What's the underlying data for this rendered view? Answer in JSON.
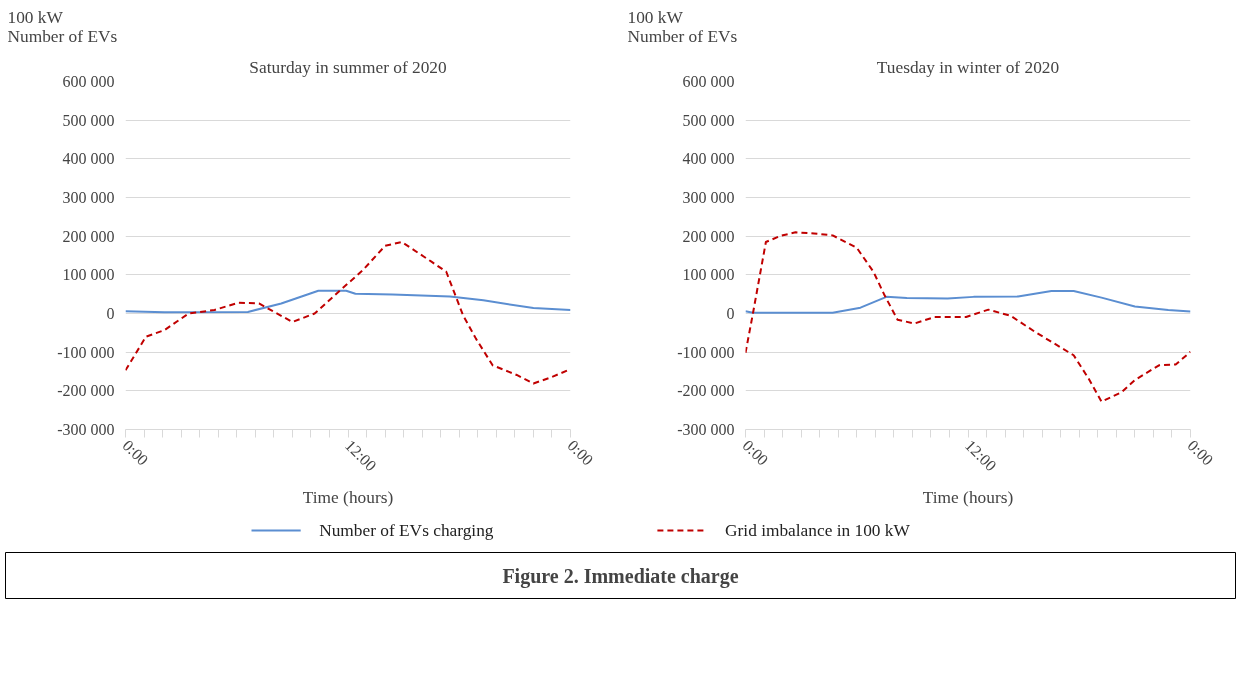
{
  "chart_data": [
    {
      "type": "line",
      "title": "Saturday in summer of 2020",
      "ylabel": "100 kW\nNumber of EVs",
      "xlabel": "Time (hours)",
      "xlim": [
        0,
        24
      ],
      "ylim": [
        -300000,
        600000
      ],
      "xticks": [
        {
          "value": 0,
          "label": "0:00"
        },
        {
          "value": 1,
          "label": null
        },
        {
          "value": 2,
          "label": null
        },
        {
          "value": 3,
          "label": null
        },
        {
          "value": 4,
          "label": null
        },
        {
          "value": 5,
          "label": null
        },
        {
          "value": 6,
          "label": null
        },
        {
          "value": 7,
          "label": null
        },
        {
          "value": 8,
          "label": null
        },
        {
          "value": 9,
          "label": null
        },
        {
          "value": 10,
          "label": null
        },
        {
          "value": 11,
          "label": null
        },
        {
          "value": 12,
          "label": "12:00"
        },
        {
          "value": 13,
          "label": null
        },
        {
          "value": 14,
          "label": null
        },
        {
          "value": 15,
          "label": null
        },
        {
          "value": 16,
          "label": null
        },
        {
          "value": 17,
          "label": null
        },
        {
          "value": 18,
          "label": null
        },
        {
          "value": 19,
          "label": null
        },
        {
          "value": 20,
          "label": null
        },
        {
          "value": 21,
          "label": null
        },
        {
          "value": 22,
          "label": null
        },
        {
          "value": 23,
          "label": null
        },
        {
          "value": 24,
          "label": "0:00"
        }
      ],
      "yticks": [
        {
          "value": -300000,
          "label": "-300 000"
        },
        {
          "value": -200000,
          "label": "-200 000"
        },
        {
          "value": -100000,
          "label": "-100 000"
        },
        0,
        {
          "value": 100000,
          "label": "100 000"
        },
        {
          "value": 200000,
          "label": "200 000"
        },
        {
          "value": 300000,
          "label": "300 000"
        },
        {
          "value": 400000,
          "label": "400 000"
        },
        {
          "value": 500000,
          "label": "500 000"
        },
        {
          "value": 600000,
          "label": "600 000"
        }
      ],
      "grid": "y",
      "legend": "bottom",
      "annotations": [
        "Figure 2. Immediate charge"
      ],
      "series": [
        {
          "name": "Number of EVs charging",
          "color": "#5b8ed1",
          "line_style": "solid",
          "x": [
            0,
            2.1,
            6.6,
            8.4,
            10.4,
            11.9,
            12.4,
            14.4,
            17.5,
            19.3,
            22,
            24
          ],
          "values": [
            6000,
            3000,
            4000,
            26000,
            59000,
            59000,
            51000,
            49000,
            44000,
            34000,
            14000,
            9000
          ]
        },
        {
          "name": "Grid imbalance in 100 kW",
          "color": "#c00000",
          "line_style": "dashed",
          "x": [
            0,
            1.1,
            2.1,
            3.4,
            4.8,
            6.1,
            7.2,
            9,
            10.2,
            11.7,
            12.8,
            14,
            14.9,
            16.5,
            17.3,
            18.2,
            18.9,
            19.8,
            21.1,
            22,
            22.9,
            24
          ],
          "values": [
            -147000,
            -60000,
            -43000,
            0,
            9000,
            28000,
            26000,
            -22000,
            0,
            65000,
            112000,
            175000,
            185000,
            134000,
            108000,
            -4000,
            -65000,
            -134000,
            -159000,
            -181000,
            -166000,
            -144000
          ]
        }
      ]
    },
    {
      "type": "line",
      "title": "Tuesday in winter of 2020",
      "ylabel": "100 kW\nNumber of EVs",
      "xlabel": "Time (hours)",
      "xlim": [
        0,
        24
      ],
      "ylim": [
        -300000,
        600000
      ],
      "xticks": [
        {
          "value": 0,
          "label": "0:00"
        },
        {
          "value": 1,
          "label": null
        },
        {
          "value": 2,
          "label": null
        },
        {
          "value": 3,
          "label": null
        },
        {
          "value": 4,
          "label": null
        },
        {
          "value": 5,
          "label": null
        },
        {
          "value": 6,
          "label": null
        },
        {
          "value": 7,
          "label": null
        },
        {
          "value": 8,
          "label": null
        },
        {
          "value": 9,
          "label": null
        },
        {
          "value": 10,
          "label": null
        },
        {
          "value": 11,
          "label": null
        },
        {
          "value": 12,
          "label": "12:00"
        },
        {
          "value": 13,
          "label": null
        },
        {
          "value": 14,
          "label": null
        },
        {
          "value": 15,
          "label": null
        },
        {
          "value": 16,
          "label": null
        },
        {
          "value": 17,
          "label": null
        },
        {
          "value": 18,
          "label": null
        },
        {
          "value": 19,
          "label": null
        },
        {
          "value": 20,
          "label": null
        },
        {
          "value": 21,
          "label": null
        },
        {
          "value": 22,
          "label": null
        },
        {
          "value": 23,
          "label": null
        },
        {
          "value": 24,
          "label": "0:00"
        }
      ],
      "yticks": [
        {
          "value": -300000,
          "label": "-300 000"
        },
        {
          "value": -200000,
          "label": "-200 000"
        },
        {
          "value": -100000,
          "label": "-100 000"
        },
        0,
        {
          "value": 100000,
          "label": "100 000"
        },
        {
          "value": 200000,
          "label": "200 000"
        },
        {
          "value": 300000,
          "label": "300 000"
        },
        {
          "value": 400000,
          "label": "400 000"
        },
        {
          "value": 500000,
          "label": "500 000"
        },
        {
          "value": 600000,
          "label": "600 000"
        }
      ],
      "grid": "y",
      "series": [
        {
          "color": "#5b8ed1",
          "line_style": "solid",
          "x": [
            0,
            0.4,
            4.7,
            6.2,
            7.6,
            8.7,
            10.9,
            12.3,
            14.7,
            16.5,
            17.7,
            19.2,
            21,
            22.8,
            24
          ],
          "values": [
            6000,
            2000,
            2000,
            15000,
            43000,
            40000,
            39000,
            43000,
            44000,
            58000,
            58000,
            41000,
            18000,
            9000,
            5000
          ]
        },
        {
          "color": "#c00000",
          "line_style": "dashed",
          "x": [
            0,
            0.4,
            1.1,
            1.9,
            2.7,
            3.7,
            4.7,
            6,
            6.9,
            7.5,
            8.2,
            9.1,
            10.2,
            11.9,
            13.1,
            14.3,
            15.6,
            16.8,
            17.7,
            18.5,
            19.2,
            20.3,
            21,
            22.3,
            23.2,
            24
          ],
          "values": [
            -102000,
            0,
            185000,
            201000,
            210000,
            207000,
            202000,
            170000,
            108000,
            47000,
            -16000,
            -26000,
            -9000,
            -9000,
            10000,
            -6000,
            -47000,
            -82000,
            -108000,
            -168000,
            -228000,
            -203000,
            -172000,
            -134000,
            -132000,
            -99000
          ]
        }
      ]
    }
  ]
}
